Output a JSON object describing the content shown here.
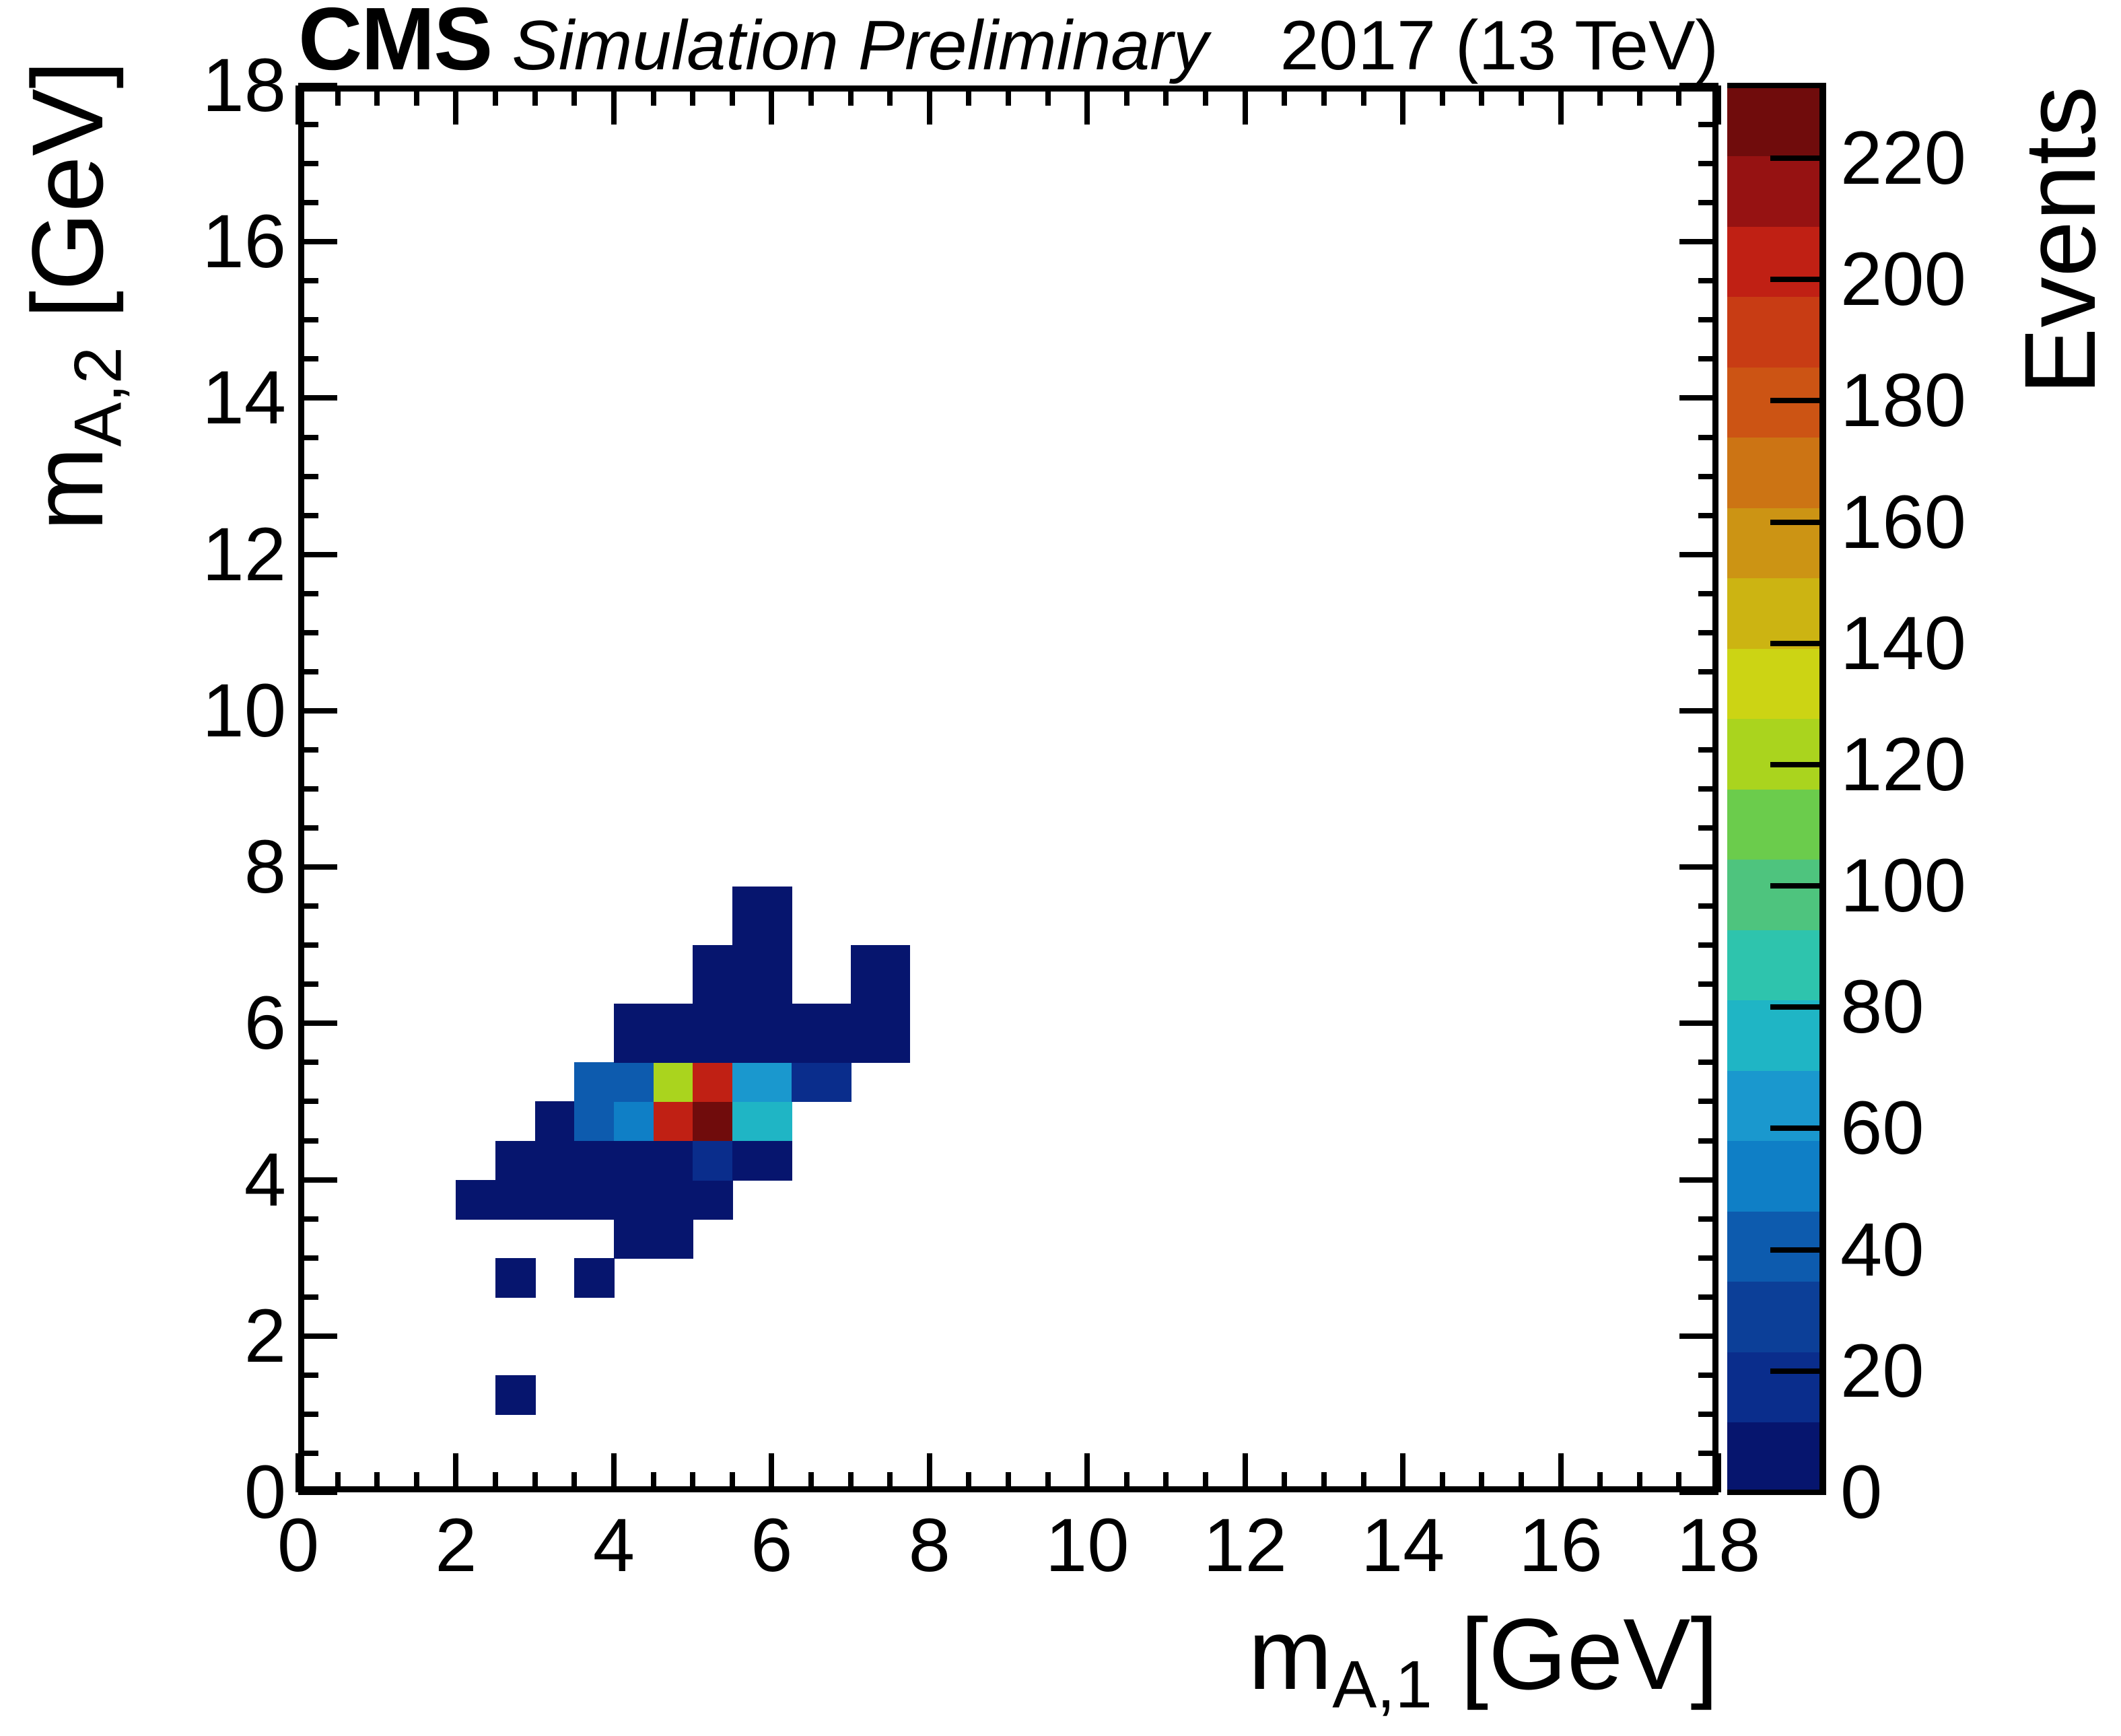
{
  "header": {
    "experiment": "CMS",
    "sim_label": "Simulation Preliminary",
    "lumi_label": "2017 (13 TeV)"
  },
  "axes": {
    "x": {
      "title_main": "m",
      "title_sub": "A,1",
      "title_rest": " [GeV]",
      "range": [
        0,
        18
      ],
      "tick_labels": [
        "0",
        "2",
        "4",
        "6",
        "8",
        "10",
        "12",
        "14",
        "16",
        "18"
      ],
      "tick_values": [
        0,
        2,
        4,
        6,
        8,
        10,
        12,
        14,
        16,
        18
      ],
      "minor_step": 0.5
    },
    "y": {
      "title_main": "m",
      "title_sub": "A,2",
      "title_rest": " [GeV]",
      "range": [
        0,
        18
      ],
      "tick_labels": [
        "0",
        "2",
        "4",
        "6",
        "8",
        "10",
        "12",
        "14",
        "16",
        "18"
      ],
      "tick_values": [
        0,
        2,
        4,
        6,
        8,
        10,
        12,
        14,
        16,
        18
      ],
      "minor_step": 0.5
    },
    "z": {
      "title": "Events",
      "tick_labels": [
        "0",
        "20",
        "40",
        "60",
        "80",
        "100",
        "120",
        "140",
        "160",
        "180",
        "200",
        "220"
      ],
      "tick_values": [
        0,
        20,
        40,
        60,
        80,
        100,
        120,
        140,
        160,
        180,
        200,
        220
      ],
      "max": 232
    }
  },
  "palette": {
    "n_levels": 20,
    "colors": [
      "#06156e",
      "#0a2d8c",
      "#0c3f98",
      "#0d5bae",
      "#0f7fc6",
      "#1a98ce",
      "#1fb5c5",
      "#2ec4ad",
      "#4ec47e",
      "#6bcc4c",
      "#aad41e",
      "#ccd414",
      "#ccb412",
      "#cc9414",
      "#cc7414",
      "#cc5414",
      "#c83c14",
      "#c02014",
      "#961212",
      "#700c0c"
    ]
  },
  "chart_data": {
    "type": "heatmap",
    "title": "CMS Simulation Preliminary 2017 (13 TeV)",
    "xlabel": "m_A,1 [GeV]",
    "ylabel": "m_A,2 [GeV]",
    "zlabel": "Events",
    "xlim": [
      0,
      18
    ],
    "ylim": [
      0,
      18
    ],
    "zlim": [
      0,
      232
    ],
    "grid": false,
    "legend_position": "right-colorbar",
    "cells": [
      {
        "x": [
          2.0,
          5.5
        ],
        "y": [
          3.5,
          4.0
        ],
        "level": 0,
        "events": 5
      },
      {
        "x": [
          2.5,
          5.0
        ],
        "y": [
          4.0,
          4.5
        ],
        "level": 0,
        "events": 5
      },
      {
        "x": [
          5.0,
          5.5
        ],
        "y": [
          4.0,
          4.5
        ],
        "level": 1,
        "events": 15
      },
      {
        "x": [
          5.5,
          6.25
        ],
        "y": [
          4.0,
          4.5
        ],
        "level": 0,
        "events": 5
      },
      {
        "x": [
          4.0,
          5.0
        ],
        "y": [
          3.0,
          3.5
        ],
        "level": 0,
        "events": 5
      },
      {
        "x": [
          2.5,
          3.0
        ],
        "y": [
          2.5,
          3.0
        ],
        "level": 0,
        "events": 5
      },
      {
        "x": [
          3.5,
          4.0
        ],
        "y": [
          2.5,
          3.0
        ],
        "level": 0,
        "events": 5
      },
      {
        "x": [
          2.5,
          3.0
        ],
        "y": [
          1.0,
          1.5
        ],
        "level": 0,
        "events": 5
      },
      {
        "x": [
          3.0,
          3.5
        ],
        "y": [
          4.5,
          5.0
        ],
        "level": 0,
        "events": 8
      },
      {
        "x": [
          3.5,
          4.0
        ],
        "y": [
          4.5,
          5.0
        ],
        "level": 3,
        "events": 40
      },
      {
        "x": [
          4.0,
          4.5
        ],
        "y": [
          4.5,
          5.0
        ],
        "level": 4,
        "events": 52
      },
      {
        "x": [
          4.5,
          5.0
        ],
        "y": [
          4.5,
          5.0
        ],
        "level": 17,
        "events": 203
      },
      {
        "x": [
          5.0,
          5.5
        ],
        "y": [
          4.5,
          5.0
        ],
        "level": 19,
        "events": 230
      },
      {
        "x": [
          5.5,
          6.25
        ],
        "y": [
          4.5,
          5.0
        ],
        "level": 6,
        "events": 76
      },
      {
        "x": [
          3.5,
          4.0
        ],
        "y": [
          5.0,
          5.5
        ],
        "level": 3,
        "events": 40
      },
      {
        "x": [
          4.0,
          4.5
        ],
        "y": [
          5.0,
          5.5
        ],
        "level": 3,
        "events": 44
      },
      {
        "x": [
          4.5,
          5.0
        ],
        "y": [
          5.0,
          5.5
        ],
        "level": 10,
        "events": 122
      },
      {
        "x": [
          5.0,
          5.5
        ],
        "y": [
          5.0,
          5.5
        ],
        "level": 17,
        "events": 200
      },
      {
        "x": [
          5.5,
          6.25
        ],
        "y": [
          5.0,
          5.5
        ],
        "level": 5,
        "events": 63
      },
      {
        "x": [
          6.25,
          7.0
        ],
        "y": [
          5.0,
          5.5
        ],
        "level": 1,
        "events": 15
      },
      {
        "x": [
          4.0,
          7.75
        ],
        "y": [
          5.5,
          6.25
        ],
        "level": 0,
        "events": 6
      },
      {
        "x": [
          5.0,
          6.25
        ],
        "y": [
          6.25,
          7.0
        ],
        "level": 0,
        "events": 6
      },
      {
        "x": [
          7.0,
          7.75
        ],
        "y": [
          6.25,
          7.0
        ],
        "level": 0,
        "events": 5
      },
      {
        "x": [
          5.5,
          6.25
        ],
        "y": [
          7.0,
          7.75
        ],
        "level": 0,
        "events": 5
      }
    ]
  }
}
